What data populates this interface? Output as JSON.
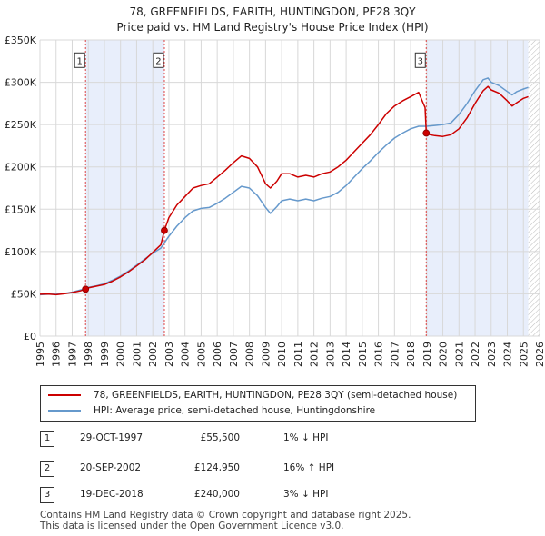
{
  "chart_data": {
    "type": "line",
    "title": "78, GREENFIELDS, EARITH, HUNTINGDON, PE28 3QY",
    "subtitle": "Price paid vs. HM Land Registry's House Price Index (HPI)",
    "y_tick_labels": [
      "£0",
      "£50K",
      "£100K",
      "£150K",
      "£200K",
      "£250K",
      "£300K",
      "£350K"
    ],
    "y_ticks": [
      0,
      50000,
      100000,
      150000,
      200000,
      250000,
      300000,
      350000
    ],
    "ylim": [
      0,
      350000
    ],
    "x_tick_labels": [
      "1995",
      "1996",
      "1997",
      "1998",
      "1999",
      "2000",
      "2001",
      "2002",
      "2003",
      "2004",
      "2005",
      "2006",
      "2007",
      "2008",
      "2009",
      "2010",
      "2011",
      "2012",
      "2013",
      "2014",
      "2015",
      "2016",
      "2017",
      "2018",
      "2019",
      "2020",
      "2021",
      "2022",
      "2023",
      "2024",
      "2025",
      "2026"
    ],
    "xlim": [
      1995,
      2026
    ],
    "grid": true,
    "shaded_ranges": [
      [
        1997.83,
        2002.72
      ],
      [
        2018.97,
        2025.3
      ]
    ],
    "hatched_from": 2025.3,
    "series": [
      {
        "name": "78, GREENFIELDS, EARITH, HUNTINGDON, PE28 3QY (semi-detached house)",
        "color": "#cc0000",
        "points": [
          [
            1995.0,
            49500
          ],
          [
            1995.5,
            49800
          ],
          [
            1996.0,
            49000
          ],
          [
            1996.5,
            50000
          ],
          [
            1997.0,
            51500
          ],
          [
            1997.5,
            53500
          ],
          [
            1997.83,
            55500
          ],
          [
            1998.0,
            57000
          ],
          [
            1998.5,
            59000
          ],
          [
            1999.0,
            61000
          ],
          [
            1999.5,
            65000
          ],
          [
            2000.0,
            70000
          ],
          [
            2000.5,
            76000
          ],
          [
            2001.0,
            83000
          ],
          [
            2001.5,
            90000
          ],
          [
            2002.0,
            99000
          ],
          [
            2002.5,
            108000
          ],
          [
            2002.72,
            124950
          ],
          [
            2003.0,
            140000
          ],
          [
            2003.5,
            155000
          ],
          [
            2004.0,
            165000
          ],
          [
            2004.5,
            175000
          ],
          [
            2005.0,
            178000
          ],
          [
            2005.5,
            180000
          ],
          [
            2006.0,
            188000
          ],
          [
            2006.5,
            196000
          ],
          [
            2007.0,
            205000
          ],
          [
            2007.5,
            213000
          ],
          [
            2008.0,
            210000
          ],
          [
            2008.5,
            200000
          ],
          [
            2009.0,
            180000
          ],
          [
            2009.3,
            175000
          ],
          [
            2009.7,
            183000
          ],
          [
            2010.0,
            192000
          ],
          [
            2010.5,
            192000
          ],
          [
            2011.0,
            188000
          ],
          [
            2011.5,
            190000
          ],
          [
            2012.0,
            188000
          ],
          [
            2012.5,
            192000
          ],
          [
            2013.0,
            194000
          ],
          [
            2013.5,
            200000
          ],
          [
            2014.0,
            208000
          ],
          [
            2014.5,
            218000
          ],
          [
            2015.0,
            228000
          ],
          [
            2015.5,
            238000
          ],
          [
            2016.0,
            250000
          ],
          [
            2016.5,
            263000
          ],
          [
            2017.0,
            272000
          ],
          [
            2017.5,
            278000
          ],
          [
            2018.0,
            283000
          ],
          [
            2018.5,
            288000
          ],
          [
            2018.9,
            270000
          ],
          [
            2018.97,
            240000
          ],
          [
            2019.2,
            238000
          ],
          [
            2019.5,
            237000
          ],
          [
            2020.0,
            236000
          ],
          [
            2020.5,
            238000
          ],
          [
            2021.0,
            245000
          ],
          [
            2021.5,
            258000
          ],
          [
            2022.0,
            275000
          ],
          [
            2022.5,
            290000
          ],
          [
            2022.8,
            295000
          ],
          [
            2023.0,
            291000
          ],
          [
            2023.5,
            287000
          ],
          [
            2024.0,
            278000
          ],
          [
            2024.3,
            272000
          ],
          [
            2024.6,
            276000
          ],
          [
            2025.0,
            281000
          ],
          [
            2025.3,
            283000
          ]
        ]
      },
      {
        "name": "HPI: Average price, semi-detached house, Huntingdonshire",
        "color": "#6699cc",
        "points": [
          [
            1995.0,
            49000
          ],
          [
            1995.5,
            49500
          ],
          [
            1996.0,
            49500
          ],
          [
            1996.5,
            50500
          ],
          [
            1997.0,
            52000
          ],
          [
            1997.5,
            54500
          ],
          [
            1997.83,
            56000
          ],
          [
            1998.0,
            57500
          ],
          [
            1998.5,
            59500
          ],
          [
            1999.0,
            62000
          ],
          [
            1999.5,
            66000
          ],
          [
            2000.0,
            71000
          ],
          [
            2000.5,
            77000
          ],
          [
            2001.0,
            84000
          ],
          [
            2001.5,
            91000
          ],
          [
            2002.0,
            98000
          ],
          [
            2002.5,
            104000
          ],
          [
            2003.0,
            118000
          ],
          [
            2003.5,
            130000
          ],
          [
            2004.0,
            140000
          ],
          [
            2004.5,
            148000
          ],
          [
            2005.0,
            151000
          ],
          [
            2005.5,
            152000
          ],
          [
            2006.0,
            157000
          ],
          [
            2006.5,
            163000
          ],
          [
            2007.0,
            170000
          ],
          [
            2007.5,
            177000
          ],
          [
            2008.0,
            175000
          ],
          [
            2008.5,
            166000
          ],
          [
            2009.0,
            152000
          ],
          [
            2009.3,
            145000
          ],
          [
            2009.7,
            153000
          ],
          [
            2010.0,
            160000
          ],
          [
            2010.5,
            162000
          ],
          [
            2011.0,
            160000
          ],
          [
            2011.5,
            162000
          ],
          [
            2012.0,
            160000
          ],
          [
            2012.5,
            163000
          ],
          [
            2013.0,
            165000
          ],
          [
            2013.5,
            170000
          ],
          [
            2014.0,
            178000
          ],
          [
            2014.5,
            188000
          ],
          [
            2015.0,
            198000
          ],
          [
            2015.5,
            207000
          ],
          [
            2016.0,
            217000
          ],
          [
            2016.5,
            226000
          ],
          [
            2017.0,
            234000
          ],
          [
            2017.5,
            240000
          ],
          [
            2018.0,
            245000
          ],
          [
            2018.5,
            248000
          ],
          [
            2018.97,
            248000
          ],
          [
            2019.5,
            249000
          ],
          [
            2020.0,
            250000
          ],
          [
            2020.5,
            252000
          ],
          [
            2021.0,
            262000
          ],
          [
            2021.5,
            275000
          ],
          [
            2022.0,
            290000
          ],
          [
            2022.5,
            303000
          ],
          [
            2022.8,
            305000
          ],
          [
            2023.0,
            300000
          ],
          [
            2023.5,
            296000
          ],
          [
            2024.0,
            289000
          ],
          [
            2024.3,
            285000
          ],
          [
            2024.6,
            289000
          ],
          [
            2025.0,
            292000
          ],
          [
            2025.3,
            294000
          ]
        ]
      }
    ],
    "sales": [
      {
        "label": "1",
        "x": 1997.83,
        "y": 55500
      },
      {
        "label": "2",
        "x": 2002.72,
        "y": 124950
      },
      {
        "label": "3",
        "x": 2018.97,
        "y": 240000
      }
    ],
    "sale_marker_y": 325000
  },
  "legend": {
    "property_label": "78, GREENFIELDS, EARITH, HUNTINGDON, PE28 3QY (semi-detached house)",
    "hpi_label": "HPI: Average price, semi-detached house, Huntingdonshire"
  },
  "transactions": [
    {
      "num": "1",
      "date": "29-OCT-1997",
      "price": "£55,500",
      "hpi": "1% ↓ HPI"
    },
    {
      "num": "2",
      "date": "20-SEP-2002",
      "price": "£124,950",
      "hpi": "16% ↑ HPI"
    },
    {
      "num": "3",
      "date": "19-DEC-2018",
      "price": "£240,000",
      "hpi": "3% ↓ HPI"
    }
  ],
  "footer": {
    "line1": "Contains HM Land Registry data © Crown copyright and database right 2025.",
    "line2": "This data is licensed under the Open Government Licence v3.0."
  },
  "colors": {
    "property": "#cc0000",
    "hpi": "#6699cc",
    "shade": "#e8eefb",
    "grid": "#d8d8d8",
    "vline": "#dd4444"
  }
}
